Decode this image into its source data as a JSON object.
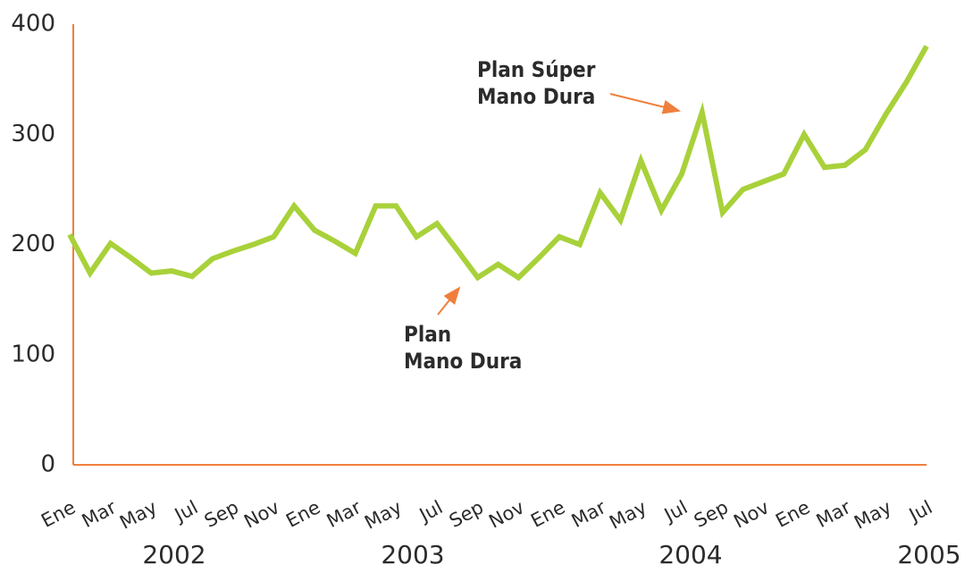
{
  "chart_data": {
    "type": "line",
    "categories": [
      "Ene",
      null,
      "Mar",
      null,
      "May",
      null,
      "Jul",
      null,
      "Sep",
      null,
      "Nov",
      null,
      "Ene",
      null,
      "Mar",
      null,
      "May",
      null,
      "Jul",
      null,
      "Sep",
      null,
      "Nov",
      null,
      "Ene",
      null,
      "Mar",
      null,
      "May",
      null,
      "Jul",
      null,
      "Sep",
      null,
      "Nov",
      null,
      "Ene",
      null,
      "Mar",
      null,
      "May",
      null,
      "Jul"
    ],
    "years": [
      "2002",
      "2003",
      "2004",
      "2005"
    ],
    "series": [
      {
        "name": null,
        "color": "#a8d13a",
        "values": [
          209,
          174,
          201,
          188,
          174,
          176,
          171,
          187,
          194,
          200,
          207,
          235,
          213,
          203,
          192,
          235,
          235,
          207,
          219,
          195,
          170,
          182,
          170,
          188,
          207,
          200,
          247,
          222,
          276,
          231,
          264,
          320,
          229,
          250,
          257,
          264,
          300,
          270,
          272,
          286,
          318,
          347,
          380
        ]
      }
    ],
    "ylim": [
      0,
      400
    ],
    "yticks": [
      0,
      100,
      200,
      300,
      400
    ],
    "grid": false,
    "axis_color": "#f07f3c",
    "annotations": [
      {
        "lines": [
          "Plan Súper",
          "Mano Dura"
        ],
        "color": "#f07f3c"
      },
      {
        "lines": [
          "Plan",
          "Mano Dura"
        ],
        "color": "#f07f3c"
      }
    ]
  }
}
